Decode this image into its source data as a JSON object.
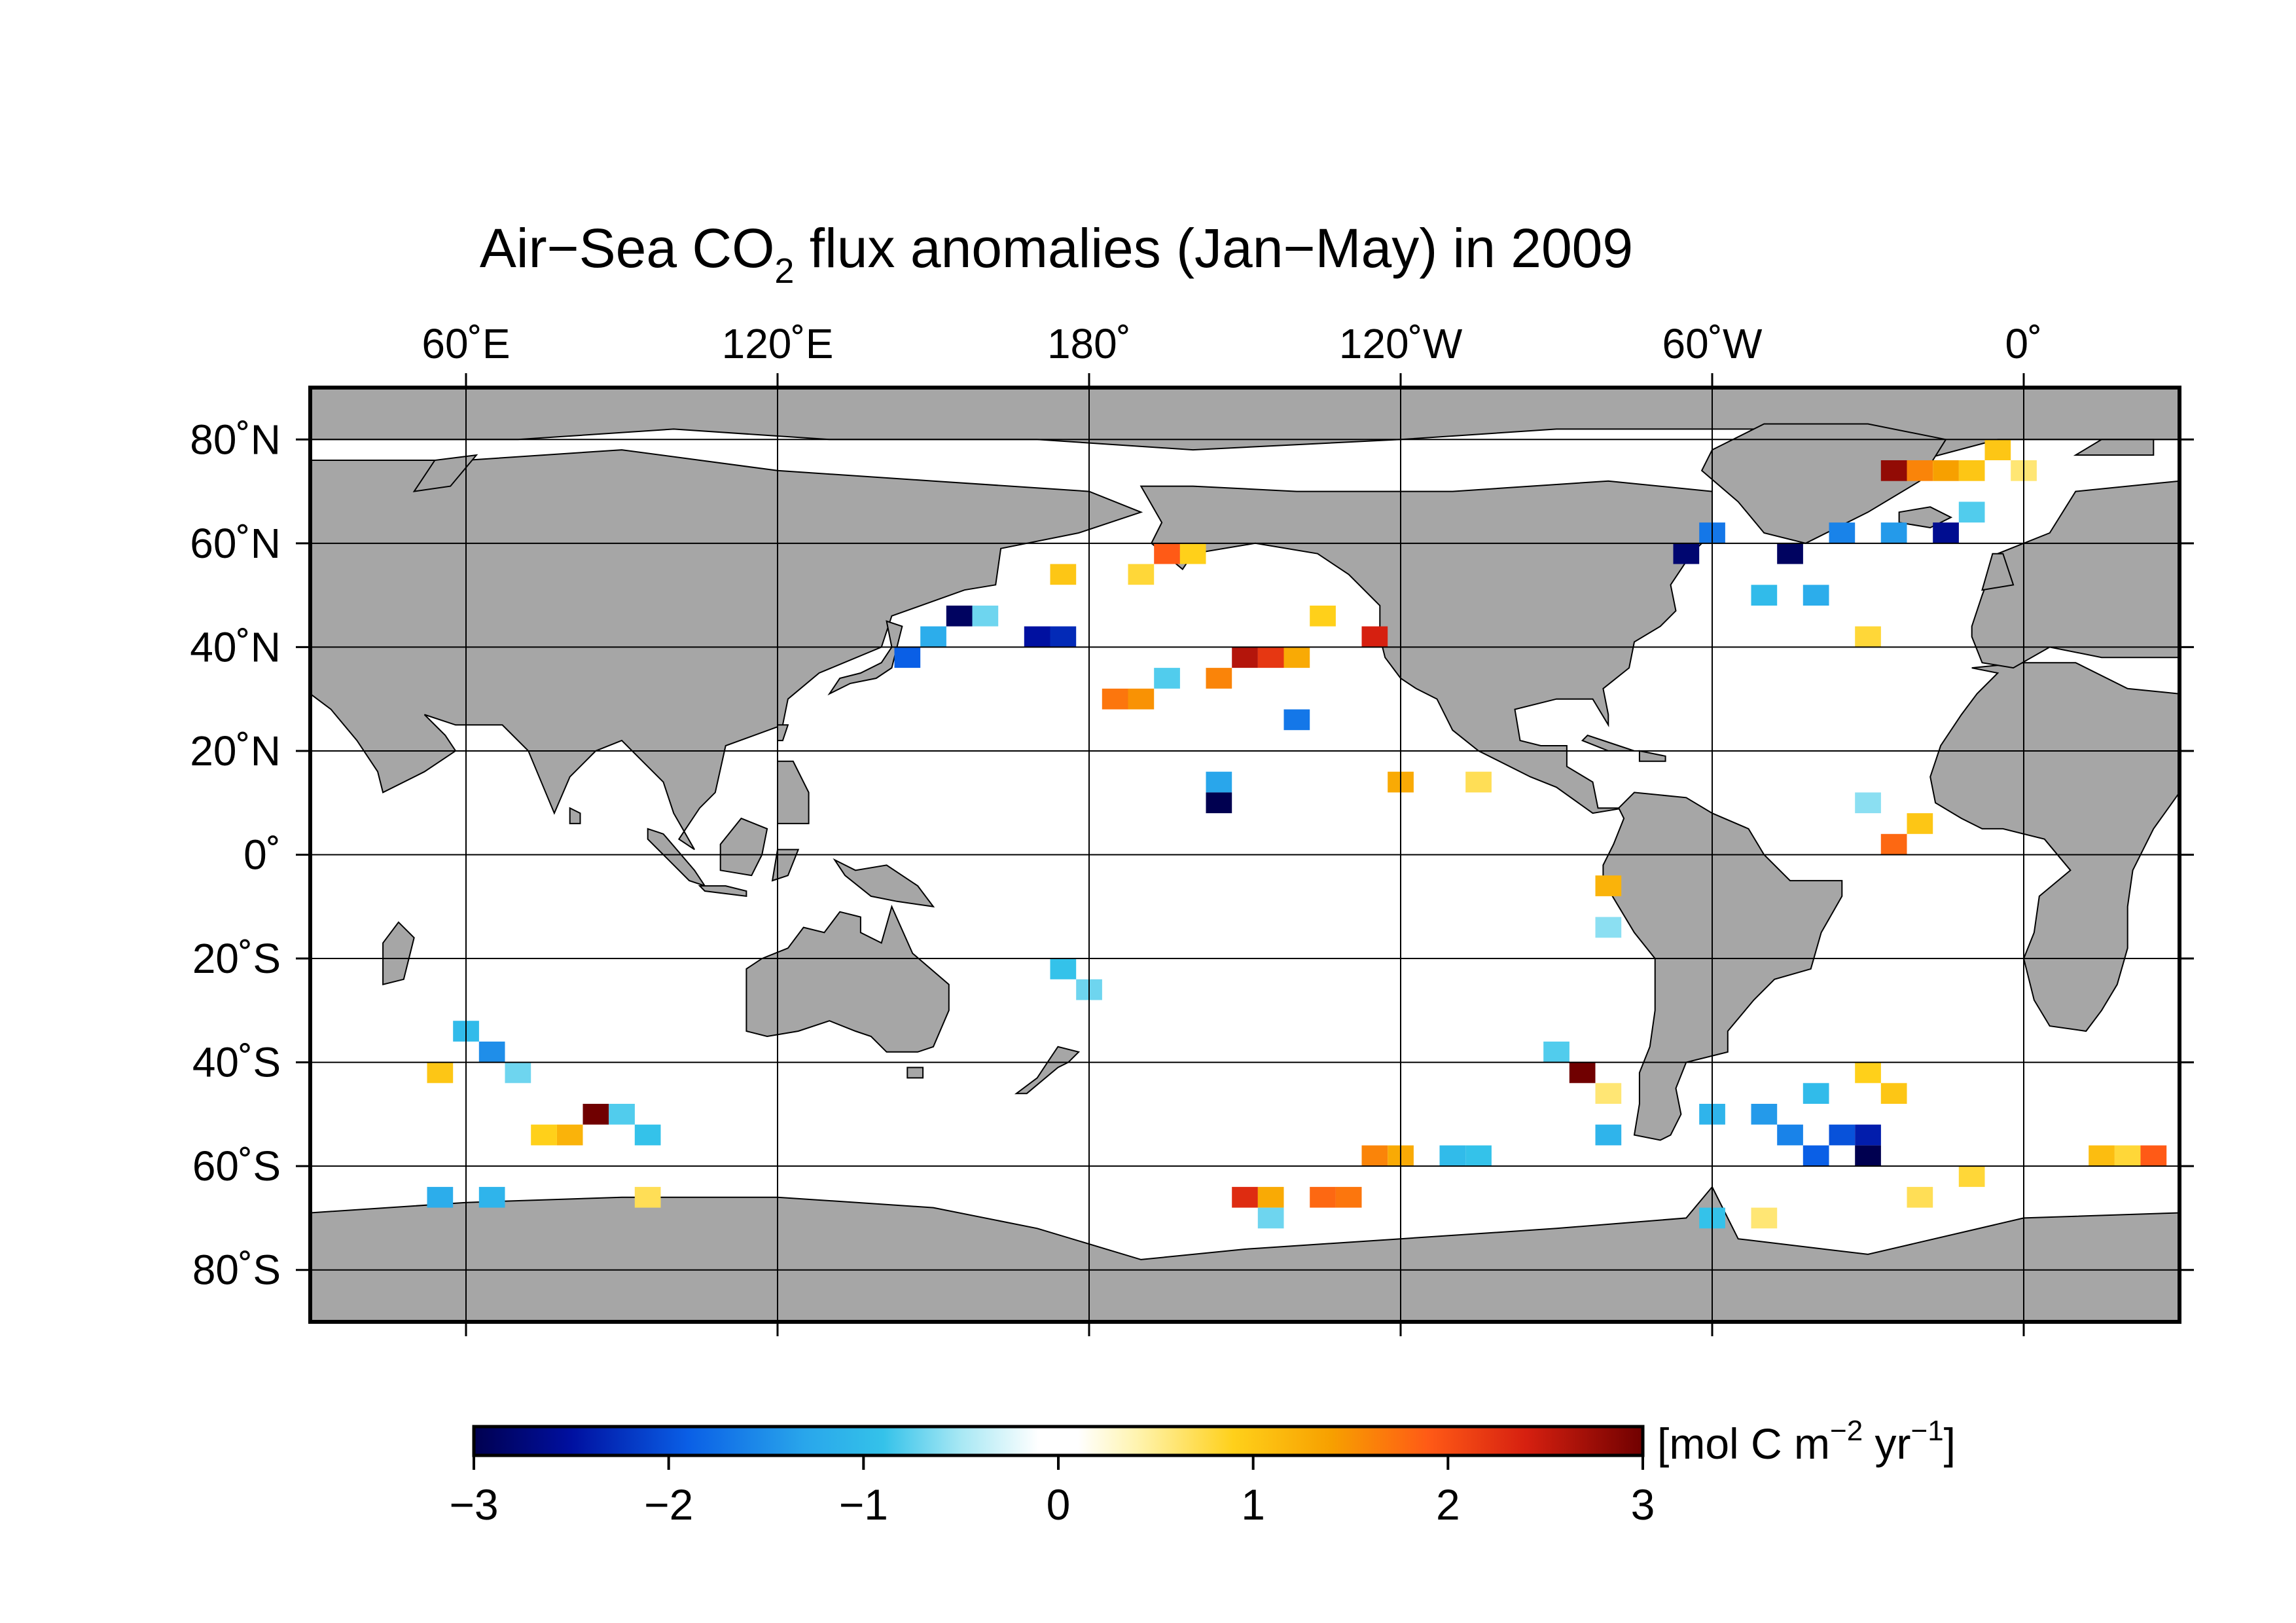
{
  "title": {
    "prefix": "Air−Sea CO",
    "subscript": "2",
    "suffix": " flux anomalies  (Jan−May) in 2009"
  },
  "map": {
    "projection": "equirectangular",
    "lon_range": [
      30,
      390
    ],
    "lat_range": [
      -90,
      90
    ],
    "ocean_background": "#ffffff",
    "land_color": "#a6a6a6",
    "coast_color": "#000000",
    "top_labels": [
      {
        "lon": 60,
        "text": "60˚E"
      },
      {
        "lon": 120,
        "text": "120˚E"
      },
      {
        "lon": 180,
        "text": "180˚"
      },
      {
        "lon": 240,
        "text": "120˚W"
      },
      {
        "lon": 300,
        "text": "60˚W"
      },
      {
        "lon": 360,
        "text": "0˚"
      }
    ],
    "left_labels": [
      {
        "lat": 80,
        "text": "80˚N"
      },
      {
        "lat": 60,
        "text": "60˚N"
      },
      {
        "lat": 40,
        "text": "40˚N"
      },
      {
        "lat": 20,
        "text": "20˚N"
      },
      {
        "lat": 0,
        "text": "0˚"
      },
      {
        "lat": -20,
        "text": "20˚S"
      },
      {
        "lat": -40,
        "text": "40˚S"
      },
      {
        "lat": -60,
        "text": "60˚S"
      },
      {
        "lat": -80,
        "text": "80˚S"
      }
    ]
  },
  "chart_data": {
    "type": "heatmap",
    "variable": "Air-sea CO2 flux anomaly",
    "period": "Jan–May 2009",
    "grid_resolution_deg": [
      5,
      4
    ],
    "value_range": [
      -3,
      3
    ],
    "cells": [
      {
        "lon": 335,
        "lat": 74,
        "v": 2.8
      },
      {
        "lon": 340,
        "lat": 74,
        "v": 1.6
      },
      {
        "lon": 345,
        "lat": 74,
        "v": 1.4
      },
      {
        "lon": 350,
        "lat": 74,
        "v": 1.0
      },
      {
        "lon": 355,
        "lat": 78,
        "v": 1.0
      },
      {
        "lon": 360,
        "lat": 74,
        "v": 0.6
      },
      {
        "lon": 350,
        "lat": 66,
        "v": -0.8
      },
      {
        "lon": 345,
        "lat": 62,
        "v": -2.6
      },
      {
        "lon": 335,
        "lat": 62,
        "v": -1.4
      },
      {
        "lon": 325,
        "lat": 62,
        "v": -1.6
      },
      {
        "lon": 315,
        "lat": 58,
        "v": -2.9
      },
      {
        "lon": 300,
        "lat": 62,
        "v": -1.7
      },
      {
        "lon": 295,
        "lat": 58,
        "v": -2.8
      },
      {
        "lon": 310,
        "lat": 50,
        "v": -1.0
      },
      {
        "lon": 320,
        "lat": 50,
        "v": -1.2
      },
      {
        "lon": 330,
        "lat": 42,
        "v": 0.8
      },
      {
        "lon": 155,
        "lat": 46,
        "v": -2.9
      },
      {
        "lon": 150,
        "lat": 42,
        "v": -1.2
      },
      {
        "lon": 145,
        "lat": 38,
        "v": -1.9
      },
      {
        "lon": 170,
        "lat": 42,
        "v": -2.5
      },
      {
        "lon": 175,
        "lat": 42,
        "v": -2.3
      },
      {
        "lon": 160,
        "lat": 46,
        "v": -0.7
      },
      {
        "lon": 175,
        "lat": 54,
        "v": 1.0
      },
      {
        "lon": 190,
        "lat": 54,
        "v": 0.8
      },
      {
        "lon": 195,
        "lat": 58,
        "v": 1.9
      },
      {
        "lon": 200,
        "lat": 58,
        "v": 0.9
      },
      {
        "lon": 210,
        "lat": 38,
        "v": 2.6
      },
      {
        "lon": 215,
        "lat": 38,
        "v": 2.2
      },
      {
        "lon": 205,
        "lat": 34,
        "v": 1.6
      },
      {
        "lon": 220,
        "lat": 38,
        "v": 1.3
      },
      {
        "lon": 185,
        "lat": 30,
        "v": 1.7
      },
      {
        "lon": 190,
        "lat": 30,
        "v": 1.5
      },
      {
        "lon": 195,
        "lat": 34,
        "v": -0.8
      },
      {
        "lon": 235,
        "lat": 42,
        "v": 2.4
      },
      {
        "lon": 225,
        "lat": 46,
        "v": 0.9
      },
      {
        "lon": 220,
        "lat": 26,
        "v": -1.7
      },
      {
        "lon": 205,
        "lat": 14,
        "v": -1.3
      },
      {
        "lon": 205,
        "lat": 10,
        "v": -3.0
      },
      {
        "lon": 240,
        "lat": 14,
        "v": 1.3
      },
      {
        "lon": 255,
        "lat": 14,
        "v": 0.7
      },
      {
        "lon": 340,
        "lat": 6,
        "v": 1.0
      },
      {
        "lon": 335,
        "lat": 2,
        "v": 1.8
      },
      {
        "lon": 330,
        "lat": 10,
        "v": -0.6
      },
      {
        "lon": 280,
        "lat": -6,
        "v": 1.2
      },
      {
        "lon": 280,
        "lat": -14,
        "v": -0.6
      },
      {
        "lon": 175,
        "lat": -22,
        "v": -0.9
      },
      {
        "lon": 180,
        "lat": -26,
        "v": -0.7
      },
      {
        "lon": 270,
        "lat": -38,
        "v": -0.8
      },
      {
        "lon": 275,
        "lat": -42,
        "v": 3.0
      },
      {
        "lon": 280,
        "lat": -46,
        "v": 0.6
      },
      {
        "lon": 280,
        "lat": -54,
        "v": -1.1
      },
      {
        "lon": 60,
        "lat": -34,
        "v": -1.0
      },
      {
        "lon": 65,
        "lat": -38,
        "v": -1.5
      },
      {
        "lon": 70,
        "lat": -42,
        "v": -0.7
      },
      {
        "lon": 55,
        "lat": -42,
        "v": 1.0
      },
      {
        "lon": 85,
        "lat": -50,
        "v": 3.0
      },
      {
        "lon": 80,
        "lat": -54,
        "v": 1.2
      },
      {
        "lon": 75,
        "lat": -54,
        "v": 0.9
      },
      {
        "lon": 90,
        "lat": -50,
        "v": -0.8
      },
      {
        "lon": 95,
        "lat": -54,
        "v": -0.9
      },
      {
        "lon": 55,
        "lat": -66,
        "v": -1.2
      },
      {
        "lon": 65,
        "lat": -66,
        "v": -1.1
      },
      {
        "lon": 95,
        "lat": -66,
        "v": 0.7
      },
      {
        "lon": 210,
        "lat": -66,
        "v": 2.3
      },
      {
        "lon": 215,
        "lat": -66,
        "v": 1.3
      },
      {
        "lon": 225,
        "lat": -66,
        "v": 1.8
      },
      {
        "lon": 230,
        "lat": -66,
        "v": 1.7
      },
      {
        "lon": 235,
        "lat": -58,
        "v": 1.6
      },
      {
        "lon": 240,
        "lat": -58,
        "v": 1.3
      },
      {
        "lon": 215,
        "lat": -70,
        "v": -0.7
      },
      {
        "lon": 250,
        "lat": -58,
        "v": -1.0
      },
      {
        "lon": 255,
        "lat": -58,
        "v": -0.9
      },
      {
        "lon": 300,
        "lat": -50,
        "v": -1.1
      },
      {
        "lon": 310,
        "lat": -50,
        "v": -1.4
      },
      {
        "lon": 315,
        "lat": -54,
        "v": -1.6
      },
      {
        "lon": 320,
        "lat": -58,
        "v": -1.9
      },
      {
        "lon": 325,
        "lat": -54,
        "v": -2.0
      },
      {
        "lon": 330,
        "lat": -58,
        "v": -3.0
      },
      {
        "lon": 330,
        "lat": -54,
        "v": -2.4
      },
      {
        "lon": 320,
        "lat": -46,
        "v": -1.0
      },
      {
        "lon": 335,
        "lat": -46,
        "v": 1.0
      },
      {
        "lon": 330,
        "lat": -42,
        "v": 0.9
      },
      {
        "lon": 385,
        "lat": -58,
        "v": 1.9
      },
      {
        "lon": 375,
        "lat": -58,
        "v": 1.1
      },
      {
        "lon": 380,
        "lat": -58,
        "v": 0.8
      },
      {
        "lon": 340,
        "lat": -66,
        "v": 0.7
      },
      {
        "lon": 350,
        "lat": -62,
        "v": 0.8
      },
      {
        "lon": 300,
        "lat": -70,
        "v": -0.9
      },
      {
        "lon": 310,
        "lat": -70,
        "v": 0.6
      }
    ],
    "colorbar": {
      "ticks": [
        {
          "v": -3,
          "label": "−3"
        },
        {
          "v": -2,
          "label": "−2"
        },
        {
          "v": -1,
          "label": "−1"
        },
        {
          "v": 0,
          "label": "0"
        },
        {
          "v": 1,
          "label": "1"
        },
        {
          "v": 2,
          "label": "2"
        },
        {
          "v": 3,
          "label": "3"
        }
      ],
      "stops": [
        {
          "v": -3.0,
          "color": "#000050"
        },
        {
          "v": -2.5,
          "color": "#0010a0"
        },
        {
          "v": -1.9,
          "color": "#0a5fe6"
        },
        {
          "v": -1.3,
          "color": "#29a6eb"
        },
        {
          "v": -0.9,
          "color": "#34c2ea"
        },
        {
          "v": -0.5,
          "color": "#a8e8f4"
        },
        {
          "v": -0.1,
          "color": "#ffffff"
        },
        {
          "v": 0.1,
          "color": "#ffffff"
        },
        {
          "v": 0.4,
          "color": "#fff4b0"
        },
        {
          "v": 0.9,
          "color": "#ffd01a"
        },
        {
          "v": 1.4,
          "color": "#f7a000"
        },
        {
          "v": 1.9,
          "color": "#ff5a16"
        },
        {
          "v": 2.4,
          "color": "#d62010"
        },
        {
          "v": 3.0,
          "color": "#700000"
        }
      ],
      "unit": {
        "prefix": "[mol C m",
        "sup1": "−2",
        "mid": " yr",
        "sup2": "−1",
        "suffix": "]"
      }
    }
  }
}
